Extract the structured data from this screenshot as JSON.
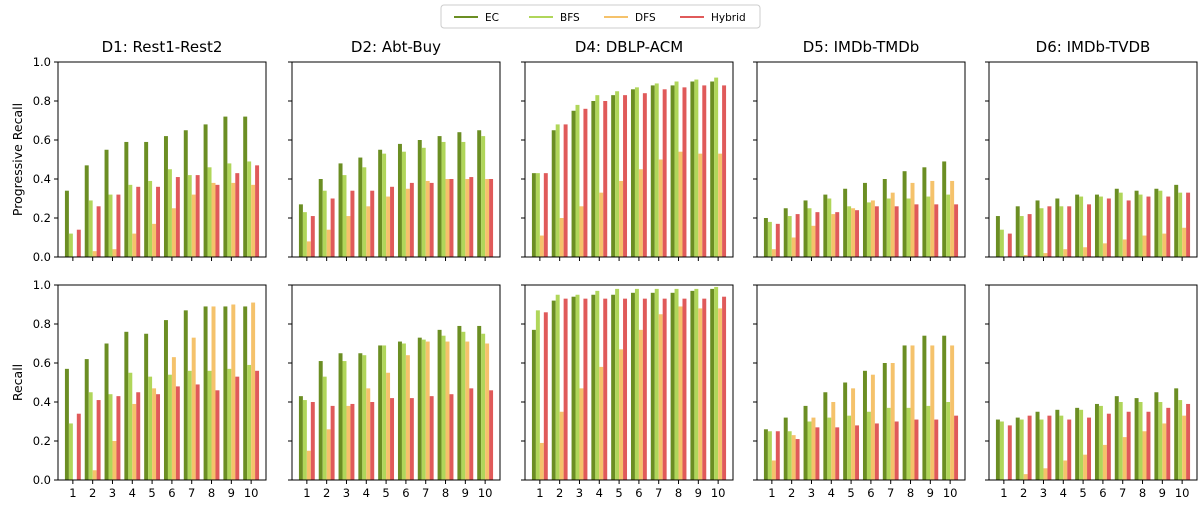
{
  "legend": {
    "placement": "top-center",
    "entries": [
      {
        "name": "EC",
        "color": "#6b8e23"
      },
      {
        "name": "BFS",
        "color": "#b0d65a"
      },
      {
        "name": "DFS",
        "color": "#f5c26b"
      },
      {
        "name": "Hybrid",
        "color": "#e05a5a"
      }
    ]
  },
  "chart_data": {
    "type": "bar",
    "grid": false,
    "ylim": [
      0,
      1.0
    ],
    "yticks": [
      "0.0",
      "0.2",
      "0.4",
      "0.6",
      "0.8",
      "1.0"
    ],
    "categories": [
      "1",
      "2",
      "3",
      "4",
      "5",
      "6",
      "7",
      "8",
      "9",
      "10"
    ],
    "series_names": [
      "EC",
      "BFS",
      "DFS",
      "Hybrid"
    ],
    "columns": [
      "D1: Rest1-Rest2",
      "D2: Abt-Buy",
      "D4: DBLP-ACM",
      "D5: IMDb-TMDb",
      "D6: IMDb-TVDB"
    ],
    "rows": [
      {
        "ylabel": "Progressive Recall",
        "panels": [
          [
            [
              0.34,
              0.47,
              0.55,
              0.59,
              0.59,
              0.62,
              0.65,
              0.68,
              0.72,
              0.72
            ],
            [
              0.12,
              0.29,
              0.32,
              0.37,
              0.39,
              0.45,
              0.42,
              0.46,
              0.48,
              0.49
            ],
            [
              0.0,
              0.03,
              0.04,
              0.12,
              0.17,
              0.25,
              0.32,
              0.38,
              0.38,
              0.37
            ],
            [
              0.14,
              0.26,
              0.32,
              0.36,
              0.36,
              0.41,
              0.42,
              0.37,
              0.43,
              0.47
            ]
          ],
          [
            [
              0.27,
              0.4,
              0.48,
              0.51,
              0.55,
              0.58,
              0.6,
              0.62,
              0.64,
              0.65
            ],
            [
              0.23,
              0.34,
              0.42,
              0.46,
              0.53,
              0.54,
              0.56,
              0.59,
              0.59,
              0.62
            ],
            [
              0.08,
              0.14,
              0.21,
              0.26,
              0.31,
              0.35,
              0.39,
              0.4,
              0.4,
              0.4
            ],
            [
              0.21,
              0.3,
              0.34,
              0.34,
              0.36,
              0.38,
              0.38,
              0.4,
              0.41,
              0.4
            ]
          ],
          [
            [
              0.43,
              0.65,
              0.75,
              0.8,
              0.83,
              0.86,
              0.88,
              0.88,
              0.9,
              0.9
            ],
            [
              0.43,
              0.68,
              0.78,
              0.83,
              0.85,
              0.87,
              0.89,
              0.9,
              0.91,
              0.92
            ],
            [
              0.11,
              0.2,
              0.26,
              0.33,
              0.39,
              0.45,
              0.5,
              0.54,
              0.53,
              0.53
            ],
            [
              0.43,
              0.68,
              0.76,
              0.8,
              0.83,
              0.84,
              0.86,
              0.87,
              0.88,
              0.88
            ]
          ],
          [
            [
              0.2,
              0.25,
              0.29,
              0.32,
              0.35,
              0.38,
              0.4,
              0.44,
              0.46,
              0.49
            ],
            [
              0.18,
              0.21,
              0.25,
              0.3,
              0.26,
              0.28,
              0.3,
              0.3,
              0.31,
              0.32
            ],
            [
              0.04,
              0.1,
              0.16,
              0.22,
              0.25,
              0.29,
              0.33,
              0.38,
              0.39,
              0.39
            ],
            [
              0.17,
              0.22,
              0.23,
              0.23,
              0.24,
              0.26,
              0.26,
              0.27,
              0.27,
              0.27
            ]
          ],
          [
            [
              0.21,
              0.26,
              0.29,
              0.3,
              0.32,
              0.32,
              0.35,
              0.34,
              0.35,
              0.37
            ],
            [
              0.14,
              0.21,
              0.25,
              0.26,
              0.31,
              0.31,
              0.33,
              0.32,
              0.34,
              0.33
            ],
            [
              0.0,
              0.01,
              0.02,
              0.04,
              0.05,
              0.07,
              0.09,
              0.11,
              0.12,
              0.15
            ],
            [
              0.12,
              0.22,
              0.26,
              0.26,
              0.27,
              0.3,
              0.29,
              0.31,
              0.31,
              0.33
            ]
          ]
        ]
      },
      {
        "ylabel": "Recall",
        "panels": [
          [
            [
              0.57,
              0.62,
              0.7,
              0.76,
              0.75,
              0.82,
              0.87,
              0.89,
              0.89,
              0.89
            ],
            [
              0.29,
              0.45,
              0.44,
              0.55,
              0.53,
              0.54,
              0.56,
              0.56,
              0.57,
              0.59
            ],
            [
              0.0,
              0.05,
              0.2,
              0.39,
              0.47,
              0.63,
              0.73,
              0.89,
              0.9,
              0.91
            ],
            [
              0.34,
              0.41,
              0.43,
              0.45,
              0.44,
              0.48,
              0.49,
              0.46,
              0.53,
              0.56
            ]
          ],
          [
            [
              0.43,
              0.61,
              0.65,
              0.65,
              0.69,
              0.71,
              0.73,
              0.77,
              0.79,
              0.79
            ],
            [
              0.41,
              0.53,
              0.61,
              0.64,
              0.69,
              0.7,
              0.72,
              0.74,
              0.76,
              0.75
            ],
            [
              0.15,
              0.26,
              0.38,
              0.47,
              0.55,
              0.64,
              0.71,
              0.71,
              0.71,
              0.7
            ],
            [
              0.4,
              0.38,
              0.39,
              0.4,
              0.42,
              0.42,
              0.43,
              0.44,
              0.47,
              0.46
            ]
          ],
          [
            [
              0.77,
              0.92,
              0.94,
              0.95,
              0.95,
              0.96,
              0.96,
              0.96,
              0.97,
              0.98
            ],
            [
              0.87,
              0.95,
              0.95,
              0.97,
              0.98,
              0.98,
              0.98,
              0.98,
              0.98,
              0.99
            ],
            [
              0.19,
              0.35,
              0.47,
              0.58,
              0.67,
              0.77,
              0.85,
              0.89,
              0.88,
              0.88
            ],
            [
              0.86,
              0.93,
              0.93,
              0.93,
              0.93,
              0.93,
              0.93,
              0.93,
              0.93,
              0.94
            ]
          ],
          [
            [
              0.26,
              0.32,
              0.38,
              0.45,
              0.5,
              0.56,
              0.6,
              0.69,
              0.74,
              0.74
            ],
            [
              0.25,
              0.25,
              0.3,
              0.32,
              0.33,
              0.35,
              0.37,
              0.37,
              0.38,
              0.4
            ],
            [
              0.1,
              0.23,
              0.32,
              0.4,
              0.47,
              0.54,
              0.6,
              0.69,
              0.69,
              0.69
            ],
            [
              0.25,
              0.21,
              0.27,
              0.27,
              0.28,
              0.29,
              0.3,
              0.31,
              0.31,
              0.33
            ]
          ],
          [
            [
              0.31,
              0.32,
              0.35,
              0.36,
              0.37,
              0.39,
              0.43,
              0.42,
              0.45,
              0.47
            ],
            [
              0.3,
              0.31,
              0.31,
              0.33,
              0.36,
              0.38,
              0.4,
              0.4,
              0.4,
              0.41
            ],
            [
              0.0,
              0.03,
              0.06,
              0.1,
              0.13,
              0.18,
              0.22,
              0.25,
              0.29,
              0.33
            ],
            [
              0.28,
              0.33,
              0.33,
              0.31,
              0.32,
              0.34,
              0.35,
              0.35,
              0.37,
              0.39
            ]
          ]
        ]
      }
    ]
  }
}
